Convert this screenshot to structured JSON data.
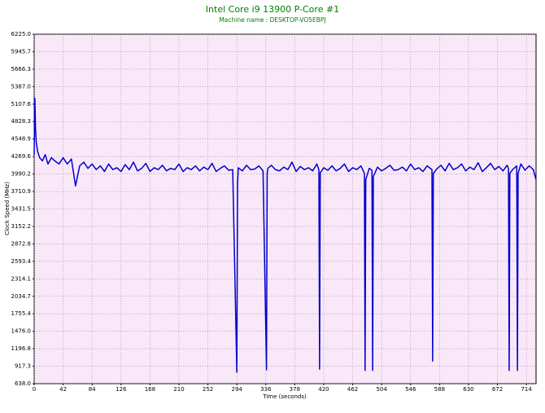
{
  "chart_data": {
    "type": "line",
    "title": "Intel Core i9 13900 P-Core #1",
    "subtitle": "Machine name : DESKTOP-VO5EBPJ",
    "xlabel": "Time (seconds)",
    "ylabel": "Clock Speed (MHz)",
    "color": "#0000cc",
    "grid": true,
    "xlim": [
      0,
      728
    ],
    "ylim": [
      638,
      6225
    ],
    "xticks": [
      0,
      42,
      84,
      126,
      168,
      210,
      252,
      294,
      336,
      378,
      420,
      462,
      504,
      546,
      588,
      630,
      672,
      714
    ],
    "yticks": [
      {
        "value": 638.0,
        "label": "638.0"
      },
      {
        "value": 917.3,
        "label": "917.3"
      },
      {
        "value": 1196.75,
        "label": "1196.8"
      },
      {
        "value": 1476.0,
        "label": "1476.0"
      },
      {
        "value": 1755.4,
        "label": "1755.4"
      },
      {
        "value": 2034.7,
        "label": "2034.7"
      },
      {
        "value": 2314.1,
        "label": "2314.1"
      },
      {
        "value": 2593.4,
        "label": "2593.4"
      },
      {
        "value": 2872.8,
        "label": "2872.8"
      },
      {
        "value": 3152.2,
        "label": "3152.2"
      },
      {
        "value": 3431.5,
        "label": "3431.5"
      },
      {
        "value": 3710.9,
        "label": "3710.9"
      },
      {
        "value": 3990.2,
        "label": "3990.2"
      },
      {
        "value": 4269.6,
        "label": "4269.6"
      },
      {
        "value": 4548.9,
        "label": "4548.9"
      },
      {
        "value": 4828.3,
        "label": "4828.3"
      },
      {
        "value": 5107.6,
        "label": "5107.6"
      },
      {
        "value": 5387.0,
        "label": "5387.0"
      },
      {
        "value": 5666.3,
        "label": "5666.3"
      },
      {
        "value": 5945.7,
        "label": "5945.7"
      },
      {
        "value": 6225.0,
        "label": "6225.0"
      }
    ],
    "x": [
      0,
      1,
      2,
      3,
      5,
      8,
      12,
      16,
      20,
      25,
      30,
      36,
      42,
      48,
      54,
      60,
      66,
      72,
      78,
      84,
      90,
      96,
      102,
      108,
      114,
      120,
      126,
      132,
      138,
      144,
      150,
      156,
      162,
      168,
      174,
      180,
      186,
      192,
      198,
      204,
      210,
      216,
      222,
      228,
      234,
      240,
      246,
      252,
      258,
      264,
      270,
      276,
      282,
      288,
      294,
      295,
      296,
      302,
      308,
      314,
      320,
      326,
      332,
      337,
      338,
      339,
      344,
      350,
      356,
      362,
      368,
      374,
      380,
      386,
      392,
      398,
      404,
      410,
      413,
      414,
      415,
      420,
      426,
      432,
      438,
      444,
      450,
      456,
      462,
      468,
      474,
      479,
      480,
      481,
      486,
      490,
      491,
      492,
      498,
      504,
      510,
      516,
      522,
      528,
      534,
      540,
      546,
      552,
      558,
      564,
      570,
      577,
      578,
      579,
      584,
      590,
      596,
      602,
      608,
      614,
      620,
      626,
      632,
      638,
      644,
      650,
      656,
      662,
      668,
      674,
      680,
      686,
      688,
      689,
      690,
      694,
      700,
      701,
      702,
      706,
      712,
      718,
      724,
      728
    ],
    "values": [
      4300,
      5200,
      4700,
      4500,
      4350,
      4250,
      4200,
      4300,
      4150,
      4250,
      4200,
      4150,
      4250,
      4150,
      4230,
      3800,
      4120,
      4180,
      4080,
      4150,
      4060,
      4120,
      4030,
      4150,
      4060,
      4090,
      4030,
      4140,
      4060,
      4180,
      4040,
      4080,
      4160,
      4030,
      4090,
      4060,
      4130,
      4040,
      4080,
      4060,
      4150,
      4030,
      4090,
      4060,
      4120,
      4040,
      4100,
      4060,
      4160,
      4030,
      4080,
      4120,
      4050,
      4060,
      820,
      3800,
      4090,
      4040,
      4130,
      4060,
      4070,
      4120,
      4040,
      860,
      4000,
      4080,
      4130,
      4060,
      4040,
      4100,
      4060,
      4180,
      4030,
      4110,
      4060,
      4090,
      4040,
      4150,
      4060,
      870,
      4010,
      4090,
      4050,
      4120,
      4040,
      4080,
      4150,
      4030,
      4090,
      4060,
      4120,
      4000,
      850,
      3900,
      4080,
      4050,
      850,
      3950,
      4100,
      4040,
      4080,
      4130,
      4050,
      4060,
      4100,
      4040,
      4150,
      4060,
      4090,
      4030,
      4120,
      4060,
      1000,
      4000,
      4070,
      4130,
      4040,
      4160,
      4060,
      4090,
      4150,
      4040,
      4100,
      4060,
      4170,
      4030,
      4090,
      4160,
      4060,
      4110,
      4040,
      4130,
      4080,
      850,
      4000,
      4060,
      4120,
      850,
      4000,
      4150,
      4050,
      4120,
      4060,
      3900
    ]
  }
}
